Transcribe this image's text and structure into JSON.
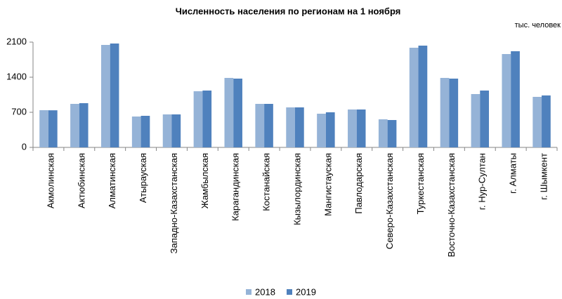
{
  "chart_data": {
    "type": "bar",
    "title": "Численность населения по регионам на 1 ноября",
    "unit_label": "тыс. человек",
    "categories": [
      "Акмолинская",
      "Актюбинская",
      "Алматинская",
      "Атырауская",
      "Западно-Казахстанская",
      "Жамбылская",
      "Карагандинская",
      "Костанайская",
      "Кызылординская",
      "Мангистауская",
      "Павлодарская",
      "Северо-Казахстанская",
      "Туркестанская",
      "Восточно-Казахстанская",
      "г. Нур-Султан",
      "г. Алматы",
      "г. Шымкент"
    ],
    "series": [
      {
        "name": "2018",
        "color": "#95b3d7",
        "values": [
          742,
          868,
          2044,
          616,
          658,
          1120,
          1386,
          868,
          798,
          672,
          756,
          560,
          1988,
          1386,
          1064,
          1862,
          1008
        ]
      },
      {
        "name": "2019",
        "color": "#4f81bd",
        "values": [
          740,
          882,
          2072,
          630,
          658,
          1134,
          1372,
          868,
          798,
          700,
          756,
          546,
          2030,
          1372,
          1134,
          1918,
          1036
        ]
      }
    ],
    "ylim": [
      0,
      2100
    ],
    "yticks": [
      0,
      700,
      1400,
      2100
    ],
    "grid": false,
    "legend": "bottom"
  }
}
